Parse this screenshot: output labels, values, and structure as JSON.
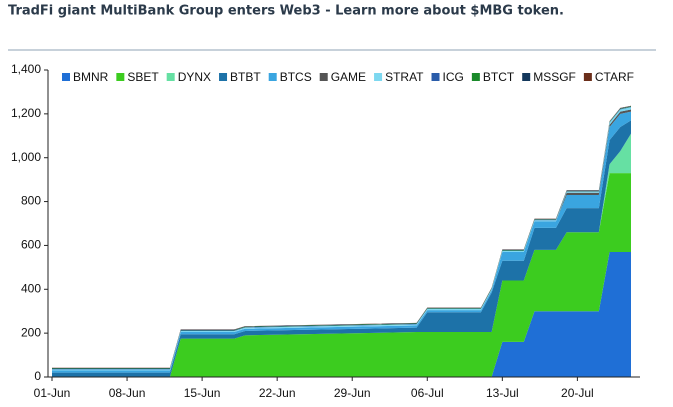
{
  "header": {
    "title": "TradFi giant MultiBank Group enters Web3 - Learn more about $MBG token."
  },
  "chart_data": {
    "type": "stacked_area",
    "x": [
      "01-Jun",
      "11-Jun",
      "12-Jun",
      "13-Jun",
      "18-Jun",
      "19-Jun",
      "05-Jul",
      "06-Jul",
      "10-Jul",
      "11-Jul",
      "12-Jul",
      "13-Jul",
      "14-Jul",
      "15-Jul",
      "16-Jul",
      "17-Jul",
      "18-Jul",
      "19-Jul",
      "20-Jul",
      "21-Jul",
      "22-Jul",
      "23-Jul",
      "24-Jul",
      "25-Jul"
    ],
    "series": [
      {
        "name": "BMNR",
        "color": "#1f6fd6",
        "values": [
          0,
          0,
          0,
          0,
          0,
          0,
          0,
          0,
          0,
          0,
          0,
          160,
          160,
          160,
          300,
          300,
          300,
          300,
          300,
          300,
          300,
          570,
          570,
          570
        ]
      },
      {
        "name": "SBET",
        "color": "#3ccc1f",
        "values": [
          0,
          0,
          0,
          175,
          175,
          190,
          205,
          205,
          205,
          205,
          205,
          280,
          280,
          280,
          280,
          280,
          280,
          360,
          360,
          360,
          360,
          360,
          360,
          360
        ]
      },
      {
        "name": "DYNX",
        "color": "#66e0a3",
        "values": [
          0,
          0,
          0,
          0,
          0,
          0,
          0,
          0,
          0,
          0,
          0,
          0,
          0,
          0,
          0,
          0,
          0,
          0,
          0,
          0,
          0,
          40,
          100,
          180
        ]
      },
      {
        "name": "BTBT",
        "color": "#1d72a8",
        "values": [
          20,
          20,
          20,
          20,
          20,
          20,
          20,
          90,
          90,
          90,
          180,
          90,
          90,
          90,
          100,
          100,
          100,
          110,
          110,
          110,
          110,
          110,
          110,
          60
        ]
      },
      {
        "name": "BTCS",
        "color": "#3aa5e0",
        "values": [
          10,
          10,
          10,
          10,
          10,
          10,
          10,
          10,
          10,
          10,
          10,
          40,
          40,
          40,
          30,
          30,
          30,
          60,
          60,
          60,
          60,
          60,
          60,
          40
        ]
      },
      {
        "name": "GAME",
        "color": "#555555",
        "values": [
          0,
          0,
          0,
          0,
          0,
          0,
          0,
          0,
          0,
          0,
          0,
          0,
          0,
          0,
          0,
          0,
          0,
          10,
          10,
          10,
          10,
          10,
          10,
          10
        ]
      },
      {
        "name": "STRAT",
        "color": "#7dd8f0",
        "values": [
          5,
          5,
          5,
          5,
          5,
          5,
          5,
          5,
          5,
          5,
          5,
          5,
          5,
          5,
          5,
          5,
          5,
          5,
          5,
          5,
          5,
          10,
          10,
          10
        ]
      },
      {
        "name": "ICG",
        "color": "#2a5caa",
        "values": [
          2,
          2,
          2,
          2,
          2,
          2,
          2,
          2,
          2,
          2,
          2,
          2,
          2,
          2,
          2,
          2,
          2,
          2,
          2,
          2,
          2,
          2,
          2,
          2
        ]
      },
      {
        "name": "BTCT",
        "color": "#1a8a2a",
        "values": [
          2,
          2,
          2,
          2,
          2,
          2,
          2,
          2,
          2,
          2,
          2,
          2,
          2,
          2,
          2,
          2,
          2,
          2,
          2,
          2,
          2,
          2,
          2,
          2
        ]
      },
      {
        "name": "MSSGF",
        "color": "#14385c",
        "values": [
          2,
          2,
          2,
          2,
          2,
          2,
          2,
          2,
          2,
          2,
          2,
          2,
          2,
          2,
          2,
          2,
          2,
          2,
          2,
          2,
          2,
          2,
          2,
          2
        ]
      },
      {
        "name": "CTARF",
        "color": "#6b2e1a",
        "values": [
          1,
          1,
          1,
          1,
          1,
          1,
          1,
          1,
          1,
          1,
          1,
          1,
          1,
          1,
          1,
          1,
          1,
          1,
          1,
          1,
          1,
          1,
          1,
          1
        ]
      }
    ],
    "xlim": [
      "01-Jun",
      "25-Jul"
    ],
    "xticks": [
      "01-Jun",
      "08-Jun",
      "15-Jun",
      "22-Jun",
      "29-Jun",
      "06-Jul",
      "13-Jul",
      "20-Jul"
    ],
    "ylim": [
      0,
      1400
    ],
    "yticks": [
      0,
      200,
      400,
      600,
      800,
      {
        "value": 1000,
        "label": "1,000"
      },
      {
        "value": 1200,
        "label": "1,200"
      },
      {
        "value": 1400,
        "label": "1,400"
      }
    ],
    "legend": "top"
  }
}
